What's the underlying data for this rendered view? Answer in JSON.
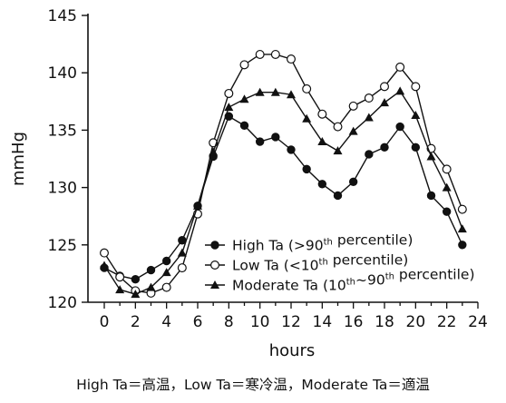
{
  "chart_data": {
    "type": "line",
    "xlabel": "hours",
    "ylabel": "mmHg",
    "xlim": [
      0,
      24
    ],
    "ylim": [
      120,
      145
    ],
    "xticks": [
      0,
      2,
      4,
      6,
      8,
      10,
      12,
      14,
      16,
      18,
      20,
      22,
      24
    ],
    "yticks": [
      120,
      125,
      130,
      135,
      140,
      145
    ],
    "grid": false,
    "legend_position": "bottom-right",
    "x": [
      0,
      1,
      2,
      3,
      4,
      5,
      6,
      7,
      8,
      9,
      10,
      11,
      12,
      13,
      14,
      15,
      16,
      17,
      18,
      19,
      20,
      21,
      22,
      23
    ],
    "series": [
      {
        "name": "High Ta (>90th percentile)",
        "name_parts": [
          "High Ta (>90",
          "th",
          " percentile)"
        ],
        "marker": "filled-circle",
        "values": [
          123.0,
          122.3,
          122.0,
          122.8,
          123.6,
          125.4,
          128.4,
          132.7,
          136.2,
          135.4,
          134.0,
          134.4,
          133.3,
          131.6,
          130.3,
          129.3,
          130.5,
          132.9,
          133.5,
          135.3,
          133.5,
          129.3,
          127.9,
          125.0
        ]
      },
      {
        "name": "Low Ta (<10th percentile)",
        "name_parts": [
          "Low Ta (<10",
          "th",
          " percentile)"
        ],
        "marker": "open-circle",
        "values": [
          124.3,
          122.2,
          121.0,
          120.8,
          121.3,
          123.0,
          127.7,
          133.9,
          138.2,
          140.7,
          141.6,
          141.6,
          141.2,
          138.6,
          136.4,
          135.3,
          137.1,
          137.8,
          138.8,
          140.5,
          138.8,
          133.4,
          131.6,
          128.1
        ]
      },
      {
        "name": "Moderate Ta (10th~90th percentile)",
        "name_parts": [
          "Moderate Ta (10",
          "th",
          "~90",
          "th",
          " percentile)"
        ],
        "marker": "filled-triangle",
        "values": [
          123.2,
          121.1,
          120.7,
          121.3,
          122.6,
          124.3,
          128.4,
          133.1,
          137.0,
          137.7,
          138.3,
          138.3,
          138.1,
          136.0,
          134.0,
          133.2,
          134.9,
          136.1,
          137.4,
          138.4,
          136.3,
          132.7,
          130.0,
          126.4
        ]
      }
    ]
  },
  "caption": "High Ta＝高温，Low Ta＝寒冷温，Moderate Ta＝適温"
}
